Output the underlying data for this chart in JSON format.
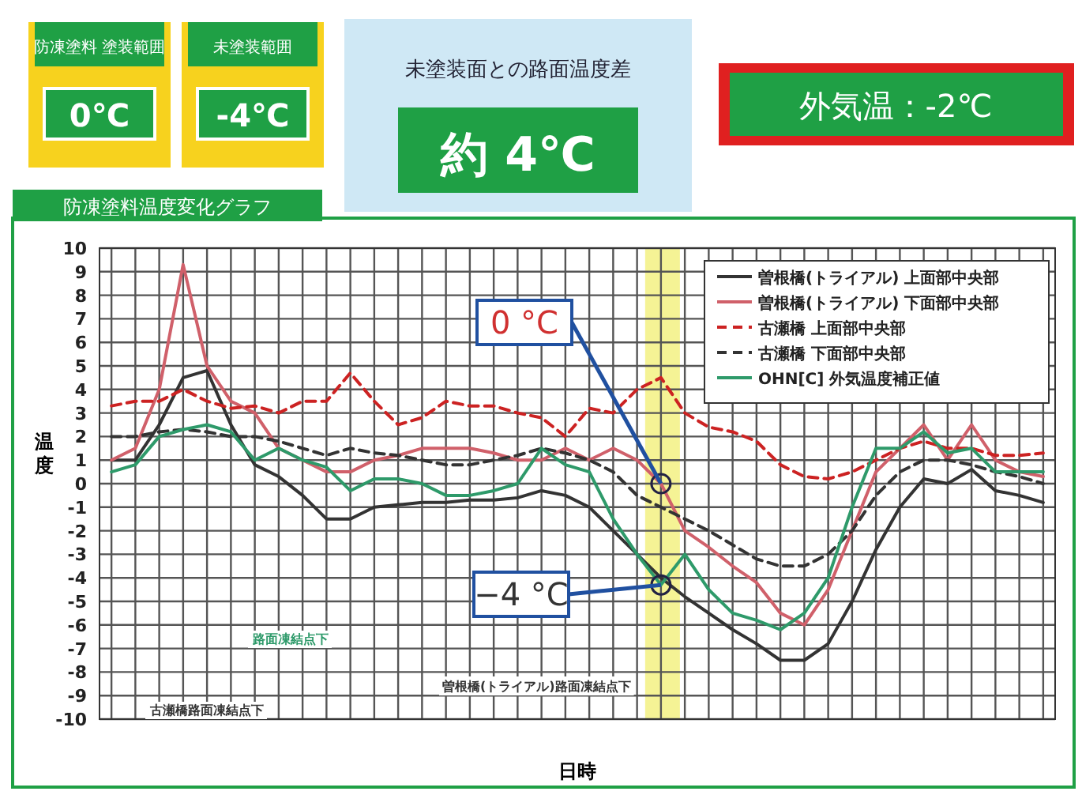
{
  "chart_data": {
    "type": "line",
    "title": "防凍塗料温度変化グラフ",
    "xlabel": "日時",
    "ylabel": "温度",
    "categories": [
      null,
      null,
      null,
      null,
      null,
      null,
      null,
      null,
      null,
      null,
      null,
      null,
      null,
      null,
      null,
      null,
      null,
      null,
      null,
      null,
      null,
      null,
      null,
      null,
      null,
      null,
      null,
      null,
      null,
      null,
      null,
      null,
      null,
      null,
      null,
      null,
      null,
      null,
      null,
      null
    ],
    "series": [
      {
        "name": "曽根橋(トライアル) 上面部中央部",
        "color": "#333333",
        "values": [
          1.0,
          1.0,
          2.5,
          4.5,
          4.8,
          2.5,
          0.8,
          0.3,
          -0.5,
          -1.5,
          -1.5,
          -1.0,
          -0.9,
          -0.8,
          -0.8,
          -0.7,
          -0.7,
          -0.6,
          -0.3,
          -0.5,
          -1.0,
          -2.0,
          -3.0,
          -4.0,
          -4.8,
          -5.5,
          -6.2,
          -6.8,
          -7.5,
          -7.5,
          -6.8,
          -5.0,
          -2.8,
          -1.0,
          0.2,
          0.0,
          0.6,
          -0.3,
          -0.5,
          -0.8
        ]
      },
      {
        "name": "曽根橋(トライアル) 下面部中央部",
        "color": "#d0606a",
        "values": [
          1.0,
          1.5,
          4.0,
          9.3,
          5.0,
          3.5,
          3.0,
          1.5,
          1.0,
          0.5,
          0.5,
          1.0,
          1.2,
          1.5,
          1.5,
          1.5,
          1.3,
          1.0,
          1.0,
          1.5,
          1.0,
          1.5,
          1.0,
          0.0,
          -2.0,
          -2.7,
          -3.5,
          -4.2,
          -5.5,
          -6.0,
          -4.5,
          -2.0,
          0.5,
          1.5,
          2.5,
          1.0,
          2.5,
          1.0,
          0.5,
          0.3
        ]
      },
      {
        "name": "古瀬橋 上面部中央部",
        "color": "#cc2222",
        "line_style": "dashed",
        "values": [
          3.3,
          3.5,
          3.5,
          4.0,
          3.5,
          3.2,
          3.3,
          3.0,
          3.5,
          3.5,
          4.7,
          3.5,
          2.5,
          2.8,
          3.5,
          3.3,
          3.3,
          3.0,
          2.8,
          2.0,
          3.2,
          3.0,
          4.0,
          4.5,
          3.0,
          2.4,
          2.2,
          1.8,
          0.8,
          0.3,
          0.2,
          0.5,
          1.0,
          1.5,
          1.8,
          1.5,
          1.5,
          1.2,
          1.2,
          1.3
        ]
      },
      {
        "name": "古瀬橋 下面部中央部",
        "color": "#333333",
        "line_style": "dashed",
        "values": [
          2.0,
          2.0,
          2.2,
          2.3,
          2.2,
          2.0,
          2.0,
          1.8,
          1.5,
          1.2,
          1.5,
          1.3,
          1.2,
          1.0,
          0.8,
          0.8,
          1.0,
          1.2,
          1.5,
          1.3,
          1.0,
          0.5,
          -0.5,
          -1.0,
          -1.5,
          -2.0,
          -2.6,
          -3.2,
          -3.5,
          -3.5,
          -3.0,
          -2.0,
          -0.5,
          0.5,
          1.0,
          1.0,
          0.8,
          0.5,
          0.3,
          0.0
        ]
      },
      {
        "name": "OHN[C] 外気温度補正値",
        "color": "#2e9a6a",
        "values": [
          0.5,
          0.8,
          2.0,
          2.3,
          2.5,
          2.2,
          1.0,
          1.5,
          1.0,
          0.7,
          -0.3,
          0.2,
          0.2,
          0.0,
          -0.5,
          -0.5,
          -0.3,
          0.0,
          1.5,
          0.8,
          0.5,
          -1.5,
          -3.0,
          -4.3,
          -3.0,
          -4.5,
          -5.5,
          -5.8,
          -6.2,
          -5.5,
          -4.0,
          -1.0,
          1.5,
          1.5,
          2.2,
          1.3,
          1.5,
          0.5,
          0.5,
          0.5
        ]
      }
    ],
    "ylim": [
      -10,
      10
    ],
    "yticks": [
      -10,
      -9,
      -8,
      -7,
      -6,
      -5,
      -4,
      -3,
      -2,
      -1,
      0,
      1,
      2,
      3,
      4,
      5,
      6,
      7,
      8,
      9,
      10
    ],
    "grid": true,
    "legend": "top right",
    "annotations": [
      "防凍塗料 塗装範囲",
      "0℃",
      "未塗装範囲",
      "-4℃",
      "未塗装面との路面温度差",
      "約 4℃",
      "外気温：-2℃",
      "0 °C",
      "−4 °C",
      "路面凍結点下",
      "曽根橋(トライアル)路面凍結点下",
      "古瀬橋路面凍結点下"
    ]
  }
}
